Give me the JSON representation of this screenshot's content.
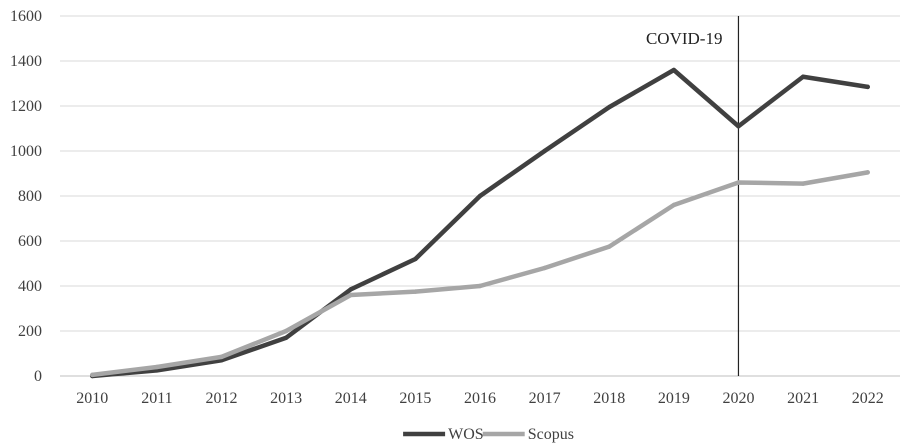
{
  "chart_data": {
    "type": "line",
    "title": "",
    "xlabel": "",
    "ylabel": "",
    "categories": [
      "2010",
      "2011",
      "2012",
      "2013",
      "2014",
      "2015",
      "2016",
      "2017",
      "2018",
      "2019",
      "2020",
      "2021",
      "2022"
    ],
    "ylim": [
      0,
      1600
    ],
    "yticks": [
      0,
      200,
      400,
      600,
      800,
      1000,
      1200,
      1400,
      1600
    ],
    "ytick_labels": [
      "0",
      "200",
      "400",
      "600",
      "800",
      "1000",
      "1200",
      "1400",
      "1600"
    ],
    "grid": true,
    "legend_position": "bottom",
    "series": [
      {
        "name": "WOS",
        "color": "#404040",
        "values": [
          0,
          25,
          70,
          170,
          385,
          520,
          800,
          1000,
          1195,
          1360,
          1110,
          1330,
          1285
        ]
      },
      {
        "name": "Scopus",
        "color": "#a6a6a6",
        "values": [
          5,
          40,
          85,
          200,
          360,
          375,
          400,
          480,
          575,
          760,
          860,
          855,
          905
        ]
      }
    ],
    "annotations": [
      {
        "label": "COVID-19",
        "x": "2020",
        "type": "vertical-line",
        "color": "#222222"
      }
    ]
  }
}
